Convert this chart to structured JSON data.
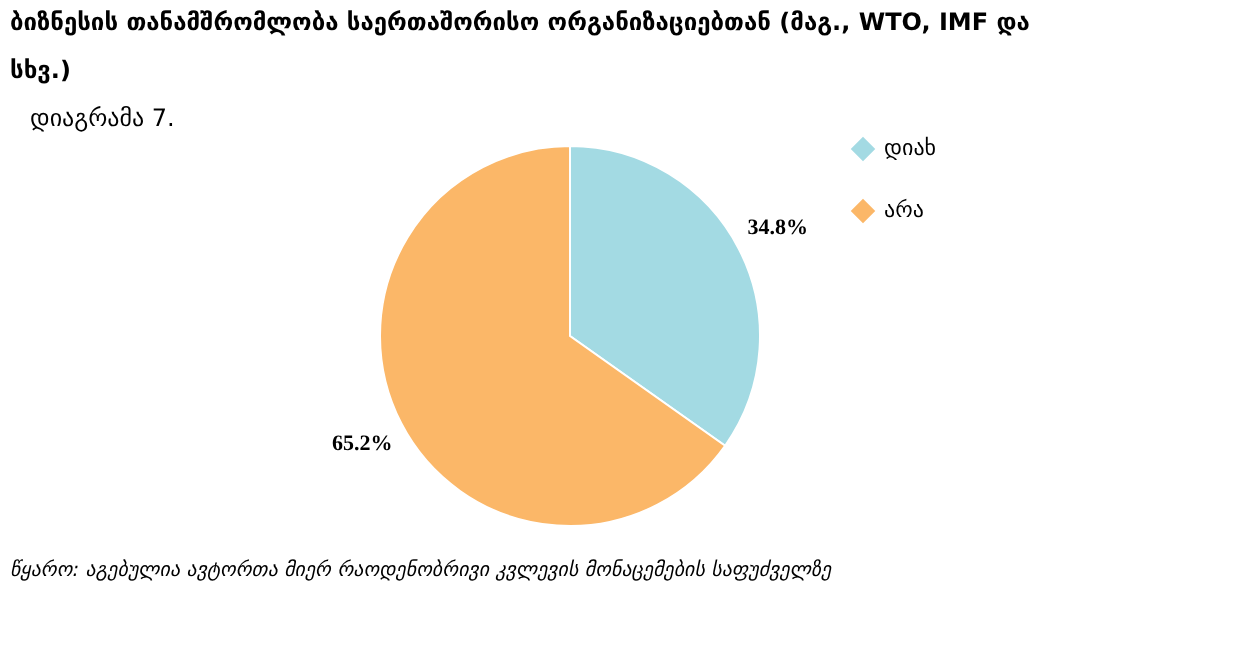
{
  "chart_data": {
    "type": "pie",
    "title": "ბიზნესის თანამშრომლობა საერთაშორისო ორგანიზაციებთან (მაგ., WTO, IMF და სხვ.)",
    "subtitle": "დიაგრამა 7.",
    "annotations": [
      "წყარო: აგებულია ავტორთა მიერ რაოდენობრივი კვლევის მონაცემების საფუძველზე"
    ],
    "categories": [
      "დიახ",
      "არა"
    ],
    "values": [
      34.8,
      65.2
    ],
    "value_labels": [
      "34.8%",
      "65.2%"
    ],
    "colors": [
      "#a3dae3",
      "#fbb768"
    ],
    "legend": "right"
  }
}
